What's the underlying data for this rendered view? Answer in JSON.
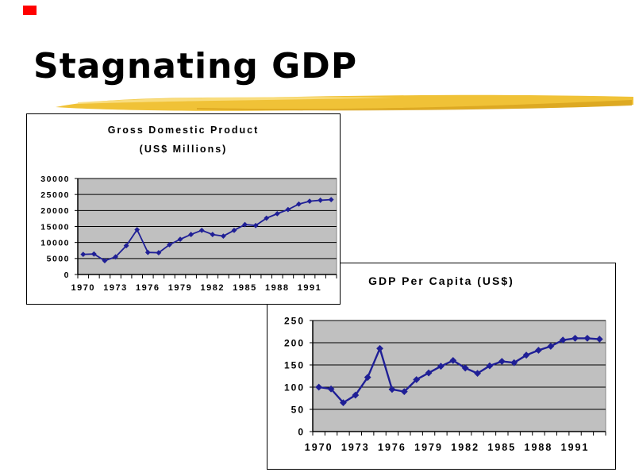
{
  "slide": {
    "title": "Stagnating GDP",
    "accent_square_color": "#FF0000",
    "brush_colors": [
      "#F0C237",
      "#D9A41E",
      "#F9E086"
    ]
  },
  "chart_data": [
    {
      "type": "line",
      "title": "Gross Domestic Product (US$ Millions)",
      "title_lines": [
        "Gross Domestic Product",
        "(US$ Millions)"
      ],
      "x": [
        1970,
        1971,
        1972,
        1973,
        1974,
        1975,
        1976,
        1977,
        1978,
        1979,
        1980,
        1981,
        1982,
        1983,
        1984,
        1985,
        1986,
        1987,
        1988,
        1989,
        1990,
        1991,
        1992,
        1993
      ],
      "series": [
        {
          "name": "GDP (US$ Millions)",
          "values": [
            6300,
            6400,
            4300,
            5500,
            9000,
            14000,
            6900,
            6800,
            9300,
            11000,
            12500,
            13800,
            12500,
            12000,
            13800,
            15600,
            15300,
            17600,
            19000,
            20300,
            22000,
            22900,
            23200,
            23400
          ]
        }
      ],
      "ylim": [
        0,
        30000
      ],
      "ytick_step": 5000,
      "yticks": [
        "30000",
        "25000",
        "20000",
        "15000",
        "10000",
        "5000",
        "0"
      ],
      "xticks": [
        "1970",
        "1973",
        "1976",
        "1979",
        "1982",
        "1985",
        "1988",
        "1991"
      ],
      "xtick_every": 3,
      "grid": true,
      "legend": "none",
      "plot_bg": "#C0C0C0",
      "line_color": "#1F1F96"
    },
    {
      "type": "line",
      "title": "GDP Per Capita (US$)",
      "title_lines": [
        "GDP Per Capita (US$)"
      ],
      "x": [
        1970,
        1971,
        1972,
        1973,
        1974,
        1975,
        1976,
        1977,
        1978,
        1979,
        1980,
        1981,
        1982,
        1983,
        1984,
        1985,
        1986,
        1987,
        1988,
        1989,
        1990,
        1991,
        1992,
        1993
      ],
      "series": [
        {
          "name": "GDP Per Capita (US$)",
          "values": [
            100,
            96,
            65,
            82,
            122,
            187,
            95,
            90,
            117,
            132,
            147,
            160,
            143,
            131,
            148,
            158,
            155,
            172,
            183,
            192,
            206,
            210,
            210,
            208
          ]
        }
      ],
      "ylim": [
        0,
        250
      ],
      "ytick_step": 50,
      "yticks": [
        "250",
        "200",
        "150",
        "100",
        "50",
        "0"
      ],
      "xticks": [
        "1970",
        "1973",
        "1976",
        "1979",
        "1982",
        "1985",
        "1988",
        "1991"
      ],
      "xtick_every": 3,
      "grid": true,
      "legend": "none",
      "plot_bg": "#C0C0C0",
      "line_color": "#1F1F96"
    }
  ]
}
